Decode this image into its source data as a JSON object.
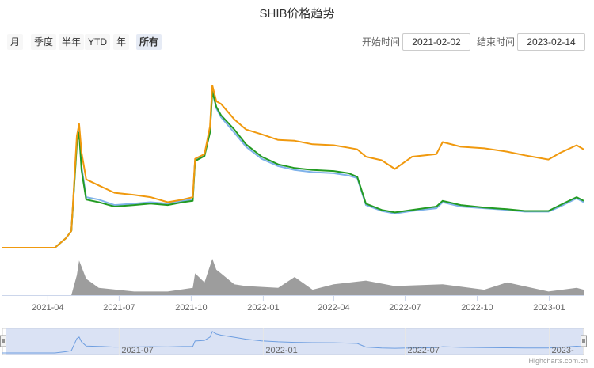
{
  "title": "SHIB价格趋势",
  "range_buttons": [
    "月",
    "季度",
    "半年",
    "YTD",
    "年",
    "所有"
  ],
  "active_button": "所有",
  "start_label": "开始时间",
  "start_date": "2021-02-02",
  "end_label": "结束时间",
  "end_date": "2023-02-14",
  "credits": "Highcharts.com.cn",
  "chart_data": {
    "type": "line",
    "title": "SHIB价格趋势",
    "x_axis": {
      "type": "datetime",
      "range": [
        "2021-02-02",
        "2023-02-14"
      ],
      "tick_labels": [
        "2021-04",
        "2021-07",
        "2021-10",
        "2022-01",
        "2022-04",
        "2022-07",
        "2022-10",
        "2023-01"
      ]
    },
    "navigator": {
      "tick_labels": [
        "2021-07",
        "2022-01",
        "2022-07",
        "2023-"
      ]
    },
    "y_scale": "log",
    "series": [
      {
        "color": "#f0990e",
        "points": [
          [
            "2021-02-02",
            0.3
          ],
          [
            "2021-04-10",
            0.3
          ],
          [
            "2021-04-24",
            0.4
          ],
          [
            "2021-05-01",
            0.5
          ],
          [
            "2021-05-08",
            9.0
          ],
          [
            "2021-05-11",
            13.0
          ],
          [
            "2021-05-14",
            5.5
          ],
          [
            "2021-05-20",
            2.4
          ],
          [
            "2021-06-05",
            2.0
          ],
          [
            "2021-06-25",
            1.6
          ],
          [
            "2021-07-20",
            1.5
          ],
          [
            "2021-08-10",
            1.4
          ],
          [
            "2021-09-01",
            1.2
          ],
          [
            "2021-09-20",
            1.3
          ],
          [
            "2021-10-03",
            1.4
          ],
          [
            "2021-10-06",
            4.5
          ],
          [
            "2021-10-18",
            5.2
          ],
          [
            "2021-10-25",
            12.0
          ],
          [
            "2021-10-28",
            42.0
          ],
          [
            "2021-11-02",
            26.0
          ],
          [
            "2021-11-08",
            24.0
          ],
          [
            "2021-11-25",
            15.0
          ],
          [
            "2021-12-10",
            11.0
          ],
          [
            "2021-12-30",
            9.5
          ],
          [
            "2022-01-20",
            8.0
          ],
          [
            "2022-02-10",
            7.8
          ],
          [
            "2022-03-05",
            7.0
          ],
          [
            "2022-04-01",
            6.8
          ],
          [
            "2022-04-20",
            6.3
          ],
          [
            "2022-05-01",
            6.0
          ],
          [
            "2022-05-12",
            4.8
          ],
          [
            "2022-06-01",
            4.3
          ],
          [
            "2022-06-18",
            3.3
          ],
          [
            "2022-07-10",
            4.8
          ],
          [
            "2022-08-10",
            5.2
          ],
          [
            "2022-08-18",
            7.5
          ],
          [
            "2022-09-10",
            6.5
          ],
          [
            "2022-10-10",
            6.2
          ],
          [
            "2022-11-08",
            5.6
          ],
          [
            "2022-12-01",
            5.0
          ],
          [
            "2022-12-31",
            4.4
          ],
          [
            "2023-01-15",
            5.4
          ],
          [
            "2023-02-05",
            6.8
          ],
          [
            "2023-02-14",
            6.0
          ]
        ]
      },
      {
        "color": "#7fb2ea",
        "points": [
          [
            "2021-02-02",
            0.3
          ],
          [
            "2021-04-10",
            0.3
          ],
          [
            "2021-04-24",
            0.4
          ],
          [
            "2021-05-01",
            0.5
          ],
          [
            "2021-05-08",
            7.5
          ],
          [
            "2021-05-11",
            10.5
          ],
          [
            "2021-05-14",
            3.6
          ],
          [
            "2021-05-20",
            1.4
          ],
          [
            "2021-06-05",
            1.3
          ],
          [
            "2021-06-25",
            1.1
          ],
          [
            "2021-07-20",
            1.15
          ],
          [
            "2021-08-10",
            1.2
          ],
          [
            "2021-09-01",
            1.15
          ],
          [
            "2021-09-20",
            1.25
          ],
          [
            "2021-10-03",
            1.3
          ],
          [
            "2021-10-06",
            4.3
          ],
          [
            "2021-10-18",
            5.0
          ],
          [
            "2021-10-25",
            10.5
          ],
          [
            "2021-10-28",
            36.0
          ],
          [
            "2021-11-02",
            21.0
          ],
          [
            "2021-11-08",
            16.0
          ],
          [
            "2021-11-25",
            10.0
          ],
          [
            "2021-12-10",
            6.5
          ],
          [
            "2021-12-30",
            4.5
          ],
          [
            "2022-01-20",
            3.6
          ],
          [
            "2022-02-10",
            3.2
          ],
          [
            "2022-03-05",
            3.0
          ],
          [
            "2022-04-01",
            2.9
          ],
          [
            "2022-04-20",
            2.7
          ],
          [
            "2022-05-01",
            2.5
          ],
          [
            "2022-05-12",
            1.1
          ],
          [
            "2022-06-01",
            0.92
          ],
          [
            "2022-06-18",
            0.85
          ],
          [
            "2022-07-10",
            0.92
          ],
          [
            "2022-08-10",
            1.0
          ],
          [
            "2022-08-18",
            1.2
          ],
          [
            "2022-09-10",
            1.05
          ],
          [
            "2022-10-10",
            1.0
          ],
          [
            "2022-11-08",
            0.95
          ],
          [
            "2022-12-01",
            0.9
          ],
          [
            "2022-12-31",
            0.9
          ],
          [
            "2023-01-15",
            1.05
          ],
          [
            "2023-02-05",
            1.35
          ],
          [
            "2023-02-14",
            1.2
          ]
        ]
      },
      {
        "color": "#239b23",
        "points": [
          [
            "2021-02-02",
            0.3
          ],
          [
            "2021-04-10",
            0.3
          ],
          [
            "2021-04-24",
            0.4
          ],
          [
            "2021-05-01",
            0.5
          ],
          [
            "2021-05-08",
            7.0
          ],
          [
            "2021-05-11",
            10.0
          ],
          [
            "2021-05-14",
            3.2
          ],
          [
            "2021-05-20",
            1.3
          ],
          [
            "2021-06-05",
            1.2
          ],
          [
            "2021-06-25",
            1.05
          ],
          [
            "2021-07-20",
            1.1
          ],
          [
            "2021-08-10",
            1.15
          ],
          [
            "2021-09-01",
            1.1
          ],
          [
            "2021-09-20",
            1.2
          ],
          [
            "2021-10-03",
            1.25
          ],
          [
            "2021-10-06",
            4.2
          ],
          [
            "2021-10-18",
            4.9
          ],
          [
            "2021-10-25",
            10.0
          ],
          [
            "2021-10-28",
            35.0
          ],
          [
            "2021-11-02",
            22.0
          ],
          [
            "2021-11-08",
            17.0
          ],
          [
            "2021-11-25",
            11.0
          ],
          [
            "2021-12-10",
            7.0
          ],
          [
            "2021-12-30",
            4.8
          ],
          [
            "2022-01-20",
            3.8
          ],
          [
            "2022-02-10",
            3.4
          ],
          [
            "2022-03-05",
            3.2
          ],
          [
            "2022-04-01",
            3.1
          ],
          [
            "2022-04-20",
            2.9
          ],
          [
            "2022-05-01",
            2.6
          ],
          [
            "2022-05-12",
            1.15
          ],
          [
            "2022-06-01",
            0.95
          ],
          [
            "2022-06-18",
            0.88
          ],
          [
            "2022-07-10",
            0.95
          ],
          [
            "2022-08-10",
            1.05
          ],
          [
            "2022-08-18",
            1.25
          ],
          [
            "2022-09-10",
            1.1
          ],
          [
            "2022-10-10",
            1.02
          ],
          [
            "2022-11-08",
            0.97
          ],
          [
            "2022-12-01",
            0.92
          ],
          [
            "2022-12-31",
            0.92
          ],
          [
            "2023-01-15",
            1.1
          ],
          [
            "2023-02-05",
            1.4
          ],
          [
            "2023-02-14",
            1.25
          ]
        ]
      }
    ],
    "volume_series": {
      "color": "#8c8c8c",
      "points": [
        [
          "2021-02-02",
          0
        ],
        [
          "2021-05-01",
          0
        ],
        [
          "2021-05-08",
          0.55
        ],
        [
          "2021-05-11",
          0.95
        ],
        [
          "2021-05-20",
          0.45
        ],
        [
          "2021-06-05",
          0.2
        ],
        [
          "2021-07-20",
          0.1
        ],
        [
          "2021-09-01",
          0.1
        ],
        [
          "2021-10-03",
          0.2
        ],
        [
          "2021-10-06",
          0.6
        ],
        [
          "2021-10-18",
          0.35
        ],
        [
          "2021-10-28",
          1.0
        ],
        [
          "2021-11-02",
          0.7
        ],
        [
          "2021-11-08",
          0.6
        ],
        [
          "2021-11-25",
          0.3
        ],
        [
          "2021-12-10",
          0.25
        ],
        [
          "2022-01-20",
          0.2
        ],
        [
          "2022-02-10",
          0.5
        ],
        [
          "2022-03-05",
          0.15
        ],
        [
          "2022-04-01",
          0.3
        ],
        [
          "2022-05-12",
          0.4
        ],
        [
          "2022-06-18",
          0.25
        ],
        [
          "2022-08-18",
          0.3
        ],
        [
          "2022-10-10",
          0.15
        ],
        [
          "2022-11-08",
          0.35
        ],
        [
          "2022-12-31",
          0.1
        ],
        [
          "2023-02-05",
          0.2
        ],
        [
          "2023-02-14",
          0.15
        ]
      ]
    }
  }
}
